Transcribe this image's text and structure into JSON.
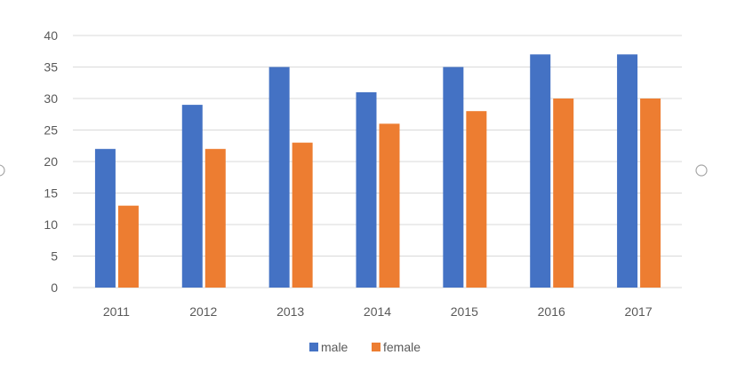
{
  "chart_data": {
    "type": "bar",
    "title": "",
    "xlabel": "",
    "ylabel": "",
    "categories": [
      "2011",
      "2012",
      "2013",
      "2014",
      "2015",
      "2016",
      "2017"
    ],
    "series": [
      {
        "name": "male",
        "values": [
          22,
          29,
          35,
          31,
          35,
          37,
          37
        ],
        "color": "#4472c4"
      },
      {
        "name": "female",
        "values": [
          13,
          22,
          23,
          26,
          28,
          30,
          30
        ],
        "color": "#ed7d31"
      }
    ],
    "ylim": [
      0,
      40
    ],
    "yticks": [
      "0",
      "5",
      "10",
      "15",
      "20",
      "25",
      "30",
      "35",
      "40"
    ],
    "grid": true,
    "legend_position": "bottom",
    "colors": {
      "gridline": "#d9d9d9",
      "axis_text": "#595959"
    }
  }
}
